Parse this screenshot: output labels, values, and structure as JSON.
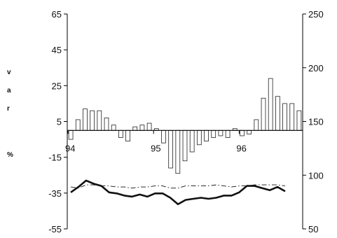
{
  "chart_data": {
    "type": "bar",
    "title": "",
    "xlabel": "",
    "ylabel_letters": [
      "v",
      "a",
      "r",
      "%"
    ],
    "left_axis": {
      "ylim": [
        -55,
        65
      ],
      "ticks": [
        "65",
        "45",
        "25",
        "5",
        "-15",
        "-35",
        "-55"
      ],
      "tick_values": [
        65,
        45,
        25,
        5,
        -15,
        -35,
        -55
      ]
    },
    "right_axis": {
      "ylim": [
        50,
        250
      ],
      "ticks": [
        "250",
        "200",
        "150",
        "100",
        "50"
      ],
      "tick_values": [
        250,
        200,
        150,
        100,
        50
      ]
    },
    "x_tick_labels": [
      "94",
      "95",
      "96"
    ],
    "x_tick_index": [
      0,
      12,
      24
    ],
    "baseline": 0,
    "grid": false,
    "legend": "none",
    "series": [
      {
        "type": "bar",
        "axis": "left",
        "values": [
          -5,
          6,
          12,
          11,
          11,
          7,
          3,
          -4,
          -6,
          2,
          3,
          4,
          1,
          -7,
          -21,
          -24,
          -17,
          -12,
          -8,
          -6,
          -4,
          -3,
          -4,
          1,
          -3,
          -2,
          6,
          18,
          29,
          19,
          15,
          15,
          11
        ]
      },
      {
        "type": "line",
        "style": "solid-thick",
        "axis": "right",
        "values": [
          84,
          89,
          95,
          92,
          90,
          84,
          83,
          81,
          80,
          82,
          80,
          83,
          83,
          79,
          73,
          77,
          78,
          79,
          78,
          79,
          81,
          81,
          84,
          90,
          90,
          88,
          86,
          89,
          85
        ]
      },
      {
        "type": "line",
        "style": "dash-dot-thin",
        "axis": "right",
        "values": [
          89,
          88,
          91,
          91,
          90,
          90,
          89,
          89,
          88,
          89,
          89,
          90,
          90,
          88,
          88,
          90,
          90,
          90,
          90,
          91,
          90,
          89,
          90,
          90,
          91,
          91,
          91,
          91,
          90
        ]
      }
    ]
  }
}
